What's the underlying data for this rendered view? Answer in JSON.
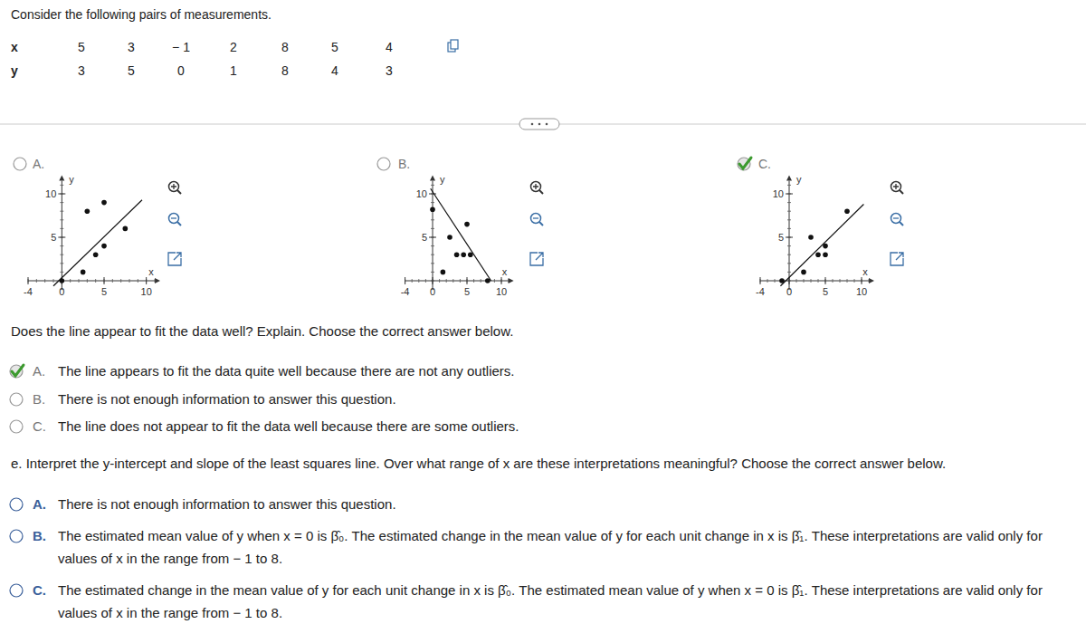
{
  "intro": "Consider the following pairs of measurements.",
  "table": {
    "rows": [
      [
        "x",
        "5",
        "3",
        "− 1",
        "2",
        "8",
        "5",
        "4"
      ],
      [
        "y",
        "3",
        "5",
        "0",
        "1",
        "8",
        "4",
        "3"
      ]
    ]
  },
  "plot_options": [
    {
      "label": "A.",
      "selected": false
    },
    {
      "label": "B.",
      "selected": false
    },
    {
      "label": "C.",
      "selected": true
    }
  ],
  "chart_data": [
    {
      "type": "scatter",
      "x_label": "x",
      "y_label": "y",
      "xlim": [
        -4,
        11
      ],
      "ylim": [
        -1,
        11.5
      ],
      "xticks": [
        -4,
        0,
        5,
        10
      ],
      "yticks": [
        5,
        10
      ],
      "series": [
        {
          "type": "scatter",
          "x": [
            0,
            2.5,
            4,
            5,
            5,
            3,
            7.5
          ],
          "values": [
            0,
            1,
            3,
            4,
            9,
            8,
            6
          ]
        },
        {
          "type": "line",
          "x": [
            -1,
            9.5
          ],
          "values": [
            -0.6,
            9.3
          ]
        }
      ]
    },
    {
      "type": "scatter",
      "x_label": "x",
      "y_label": "y",
      "xlim": [
        -4,
        11
      ],
      "ylim": [
        -1,
        11.5
      ],
      "xticks": [
        -4,
        0,
        5,
        10
      ],
      "yticks": [
        5,
        10
      ],
      "series": [
        {
          "type": "scatter",
          "x": [
            0,
            2.5,
            1.5,
            5,
            3.5,
            4.5,
            5.5,
            8
          ],
          "values": [
            8.2,
            5,
            1,
            6.5,
            3,
            3,
            3,
            0
          ]
        },
        {
          "type": "line",
          "x": [
            -0.3,
            8.5
          ],
          "values": [
            10.6,
            0
          ]
        }
      ]
    },
    {
      "type": "scatter",
      "x_label": "x",
      "y_label": "y",
      "xlim": [
        -4,
        11
      ],
      "ylim": [
        -1,
        11.5
      ],
      "xticks": [
        -4,
        0,
        5,
        10
      ],
      "yticks": [
        5,
        10
      ],
      "series": [
        {
          "type": "scatter",
          "x": [
            5,
            3,
            -1,
            2,
            8,
            5,
            4
          ],
          "values": [
            3,
            5,
            0,
            1,
            8,
            4,
            3
          ]
        },
        {
          "type": "line",
          "x": [
            -1.2,
            10.3
          ],
          "values": [
            -0.6,
            8.8
          ]
        }
      ]
    }
  ],
  "question_d": {
    "prompt": "Does the line appear to fit the data well? Explain. Choose the correct answer below.",
    "options": [
      {
        "letter": "A.",
        "text": "The line appears to fit the data quite well because there are not any outliers.",
        "selected": true
      },
      {
        "letter": "B.",
        "text": "There is not enough information to answer this question.",
        "selected": false
      },
      {
        "letter": "C.",
        "text": "The line does not appear to fit the data well because there are some outliers.",
        "selected": false
      }
    ]
  },
  "question_e": {
    "prompt": "e. Interpret the y-intercept and slope of the least squares line. Over what range of x are these interpretations meaningful? Choose the correct answer below.",
    "options": [
      {
        "letter": "A.",
        "text": "There is not enough information to answer this question.",
        "selected": false
      },
      {
        "letter": "B.",
        "text": "The estimated mean value of y when x = 0 is β̂₀. The estimated change in the mean value of y for each unit change in x is β̂₁. These interpretations are valid only for values of x in the range from − 1 to 8.",
        "selected": false
      },
      {
        "letter": "C.",
        "text": "The estimated change in the mean value of y for each unit change in x is β̂₀. The estimated mean value of y when x = 0 is β̂₁. These interpretations are valid only for values of x in the range from − 1 to 8.",
        "selected": false
      }
    ]
  }
}
